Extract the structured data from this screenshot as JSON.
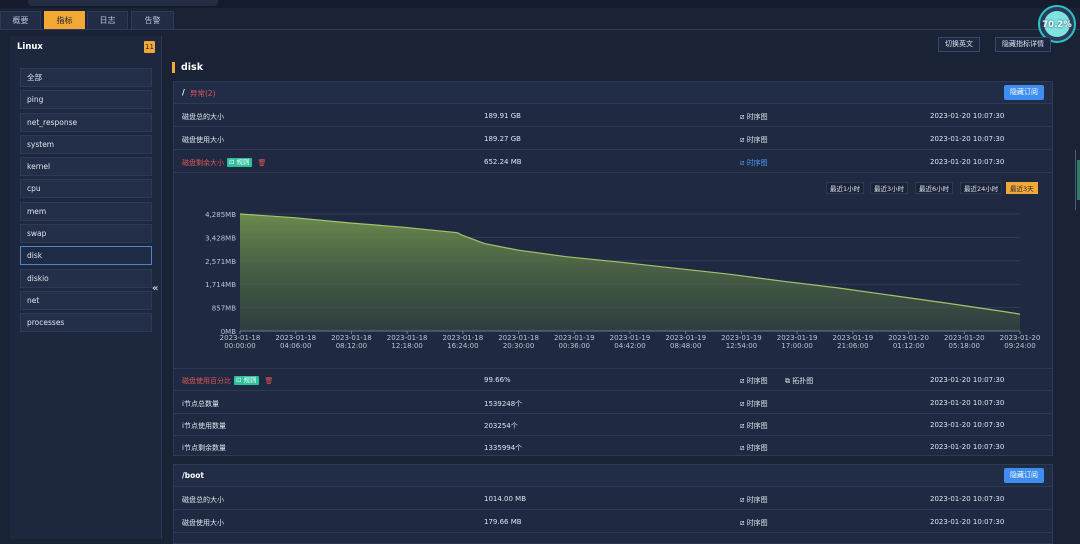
{
  "tabs": [
    "概要",
    "指标",
    "日志",
    "告警"
  ],
  "active_tab": 1,
  "progress_ring": {
    "label": "70.2%",
    "value": 0.702
  },
  "sidebar": {
    "title": "Linux",
    "count": "11",
    "items": [
      "全部",
      "ping",
      "net_response",
      "system",
      "kernel",
      "cpu",
      "mem",
      "swap",
      "disk",
      "diskio",
      "net",
      "processes"
    ],
    "selected": 8,
    "collapse_glyph": "«"
  },
  "toolbar": {
    "switch_lang": "切换英文",
    "hide_detail": "隐藏指标详情"
  },
  "section": {
    "title": "disk"
  },
  "card1": {
    "path": "/",
    "alert": "异常(2)",
    "subscribe": "隐藏订阅",
    "rows": [
      {
        "name": "磁盘总的大小",
        "value": "189.91 GB",
        "chart": "时序图",
        "time": "2023-01-20 10:07:30",
        "alert": false
      },
      {
        "name": "磁盘使用大小",
        "value": "189.27 GB",
        "chart": "时序图",
        "time": "2023-01-20 10:07:30",
        "alert": false
      },
      {
        "name": "磁盘剩余大小",
        "value": "652.24 MB",
        "chart": "时序图",
        "time": "2023-01-20 10:07:30",
        "alert": true,
        "rule": "规则"
      }
    ],
    "rows_after": [
      {
        "name": "磁盘使用百分比",
        "value": "99.66%",
        "chart": "时序图",
        "chart2": "拓扑图",
        "time": "2023-01-20 10:07:30",
        "alert": true,
        "rule": "规则"
      },
      {
        "name": "i节点总数量",
        "value": "1539248个",
        "chart": "时序图",
        "time": "2023-01-20 10:07:30",
        "alert": false
      },
      {
        "name": "i节点使用数量",
        "value": "203254个",
        "chart": "时序图",
        "time": "2023-01-20 10:07:30",
        "alert": false
      },
      {
        "name": "i节点剩余数量",
        "value": "1335994个",
        "chart": "时序图",
        "time": "2023-01-20 10:07:30",
        "alert": false
      }
    ],
    "ranges": [
      "最近1小时",
      "最近3小时",
      "最近6小时",
      "最近24小时",
      "最近3天"
    ],
    "active_range": 4
  },
  "card2": {
    "path": "/boot",
    "subscribe": "隐藏订阅",
    "rows": [
      {
        "name": "磁盘总的大小",
        "value": "1014.00 MB",
        "chart": "时序图",
        "time": "2023-01-20 10:07:30"
      },
      {
        "name": "磁盘使用大小",
        "value": "179.66 MB",
        "chart": "时序图",
        "time": "2023-01-20 10:07:30"
      }
    ]
  },
  "colors": {
    "accent": "#f3a735",
    "alert": "#e05656",
    "link": "#4a9bf5",
    "series_line": "#a6c36a",
    "subscribe": "#3d8ef0"
  },
  "chart_data": {
    "type": "area",
    "y_tick_labels": [
      "0MB",
      "857MB",
      "1,714MB",
      "2,571MB",
      "3,428MB",
      "4,285MB"
    ],
    "ylim": [
      0,
      4285
    ],
    "x_tick_labels": [
      [
        "2023-01-18",
        "00:00:00"
      ],
      [
        "2023-01-18",
        "04:06:00"
      ],
      [
        "2023-01-18",
        "08:12:00"
      ],
      [
        "2023-01-18",
        "12:18:00"
      ],
      [
        "2023-01-18",
        "16:24:00"
      ],
      [
        "2023-01-18",
        "20:30:00"
      ],
      [
        "2023-01-19",
        "00:36:00"
      ],
      [
        "2023-01-19",
        "04:42:00"
      ],
      [
        "2023-01-19",
        "08:48:00"
      ],
      [
        "2023-01-19",
        "12:54:00"
      ],
      [
        "2023-01-19",
        "17:00:00"
      ],
      [
        "2023-01-19",
        "21:06:00"
      ],
      [
        "2023-01-20",
        "01:12:00"
      ],
      [
        "2023-01-20",
        "05:18:00"
      ],
      [
        "2023-01-20",
        "09:24:00"
      ]
    ],
    "x_hours": [
      0,
      4.1,
      8.2,
      12.3,
      16.4,
      20.5,
      24.6,
      28.7,
      32.8,
      36.9,
      41.0,
      45.1,
      49.2,
      53.3,
      57.4
    ],
    "points_hours": [
      0,
      4,
      8,
      12,
      16,
      16.3,
      18,
      20.5,
      24,
      28,
      32,
      36,
      40,
      44,
      48,
      52,
      56,
      57.4
    ],
    "points_mb": [
      4285,
      4150,
      3960,
      3800,
      3600,
      3520,
      3200,
      2960,
      2720,
      2520,
      2300,
      2080,
      1820,
      1580,
      1300,
      1020,
      730,
      620
    ]
  }
}
